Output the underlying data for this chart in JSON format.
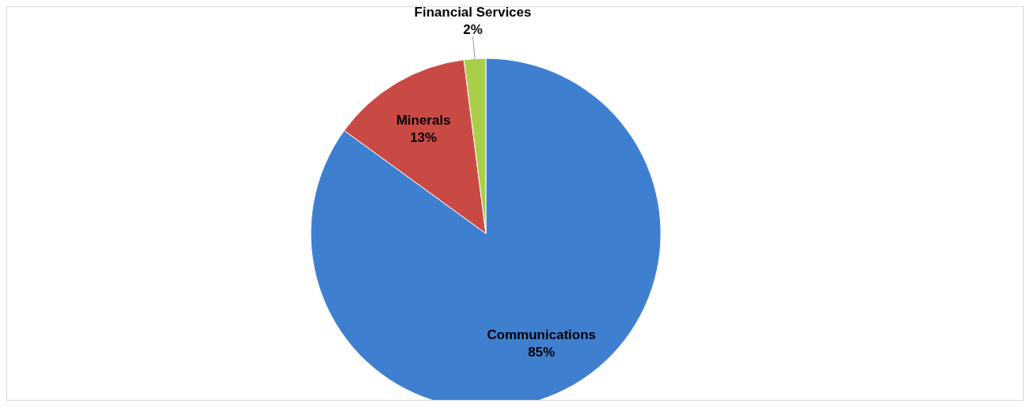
{
  "chart_data": {
    "type": "pie",
    "categories": [
      "Communications",
      "Minerals",
      "Financial Services"
    ],
    "values": [
      85,
      13,
      2
    ],
    "colors": [
      "#3f7fd0",
      "#c94a44",
      "#a9cf4a"
    ],
    "value_labels": [
      "85%",
      "13%",
      "2%"
    ],
    "legend": false
  }
}
